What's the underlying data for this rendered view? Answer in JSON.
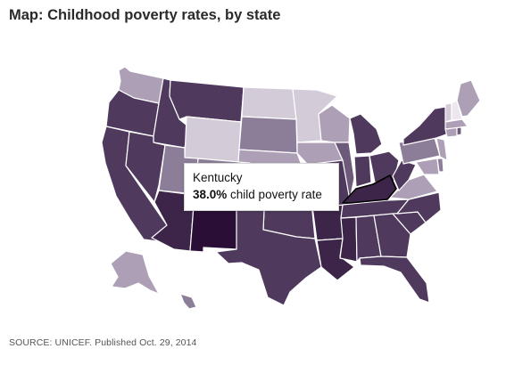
{
  "header": {
    "title": "Map: Childhood poverty rates, by state"
  },
  "tooltip": {
    "state": "Kentucky",
    "value": "38.0%",
    "suffix": "child poverty rate"
  },
  "footer": {
    "source": "SOURCE: UNICEF. Published Oct. 29, 2014"
  },
  "colors": {
    "darkest": "#2a0e35",
    "very_dark": "#3c2548",
    "dark": "#4f3a5e",
    "medium": "#6d5a7b",
    "light": "#8c7d98",
    "lighter": "#ad9fb6",
    "lightest": "#d4cbd9",
    "pale": "#ece7ef",
    "highlight_stroke": "#000000"
  },
  "states": [
    {
      "name": "Washington",
      "level": "lighter"
    },
    {
      "name": "Oregon",
      "level": "dark"
    },
    {
      "name": "California",
      "level": "dark"
    },
    {
      "name": "Idaho",
      "level": "dark"
    },
    {
      "name": "Nevada",
      "level": "dark"
    },
    {
      "name": "Montana",
      "level": "dark"
    },
    {
      "name": "Wyoming",
      "level": "lightest"
    },
    {
      "name": "Utah",
      "level": "light"
    },
    {
      "name": "Arizona",
      "level": "very_dark"
    },
    {
      "name": "Colorado",
      "level": "light"
    },
    {
      "name": "New Mexico",
      "level": "darkest"
    },
    {
      "name": "North Dakota",
      "level": "lightest"
    },
    {
      "name": "South Dakota",
      "level": "light"
    },
    {
      "name": "Nebraska",
      "level": "lighter"
    },
    {
      "name": "Kansas",
      "level": "lighter"
    },
    {
      "name": "Oklahoma",
      "level": "dark"
    },
    {
      "name": "Texas",
      "level": "dark"
    },
    {
      "name": "Minnesota",
      "level": "lightest"
    },
    {
      "name": "Iowa",
      "level": "lighter"
    },
    {
      "name": "Missouri",
      "level": "dark"
    },
    {
      "name": "Arkansas",
      "level": "very_dark"
    },
    {
      "name": "Louisiana",
      "level": "very_dark"
    },
    {
      "name": "Wisconsin",
      "level": "lighter"
    },
    {
      "name": "Illinois",
      "level": "medium"
    },
    {
      "name": "Michigan",
      "level": "dark"
    },
    {
      "name": "Indiana",
      "level": "dark"
    },
    {
      "name": "Ohio",
      "level": "dark"
    },
    {
      "name": "Kentucky",
      "level": "very_dark",
      "highlight": true
    },
    {
      "name": "Tennessee",
      "level": "dark"
    },
    {
      "name": "Mississippi",
      "level": "very_dark"
    },
    {
      "name": "Alabama",
      "level": "dark"
    },
    {
      "name": "Georgia",
      "level": "dark"
    },
    {
      "name": "Florida",
      "level": "dark"
    },
    {
      "name": "South Carolina",
      "level": "dark"
    },
    {
      "name": "North Carolina",
      "level": "dark"
    },
    {
      "name": "Virginia",
      "level": "lighter"
    },
    {
      "name": "West Virginia",
      "level": "dark"
    },
    {
      "name": "Pennsylvania",
      "level": "light"
    },
    {
      "name": "New York",
      "level": "dark"
    },
    {
      "name": "Vermont",
      "level": "lightest"
    },
    {
      "name": "New Hampshire",
      "level": "pale"
    },
    {
      "name": "Maine",
      "level": "lighter"
    },
    {
      "name": "Massachusetts",
      "level": "lighter"
    },
    {
      "name": "Connecticut",
      "level": "lighter"
    },
    {
      "name": "Rhode Island",
      "level": "medium"
    },
    {
      "name": "New Jersey",
      "level": "lighter"
    },
    {
      "name": "Delaware",
      "level": "light"
    },
    {
      "name": "Maryland",
      "level": "lighter"
    },
    {
      "name": "Alaska",
      "level": "lighter"
    },
    {
      "name": "Hawaii",
      "level": "light"
    }
  ]
}
